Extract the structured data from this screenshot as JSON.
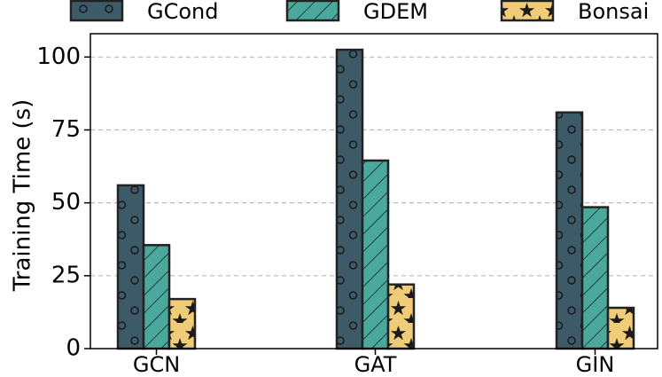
{
  "chart_data": {
    "type": "bar",
    "categories": [
      "GCN",
      "GAT",
      "GIN"
    ],
    "series": [
      {
        "name": "GCond",
        "values": [
          56,
          102.5,
          81
        ],
        "color": "#3d5a69",
        "pattern": "circles"
      },
      {
        "name": "GDEM",
        "values": [
          35.5,
          64.5,
          48.5
        ],
        "color": "#4aa99c",
        "pattern": "diagonal-hatch"
      },
      {
        "name": "Bonsai",
        "values": [
          17,
          22,
          14
        ],
        "color": "#f0cc78",
        "pattern": "stars"
      }
    ],
    "title": "",
    "xlabel": "",
    "ylabel": "Training Time (s)",
    "ylim": [
      0,
      108
    ],
    "yticks": [
      0,
      25,
      50,
      75,
      100
    ],
    "grid": "horizontal-dashed",
    "legend_position": "top"
  }
}
